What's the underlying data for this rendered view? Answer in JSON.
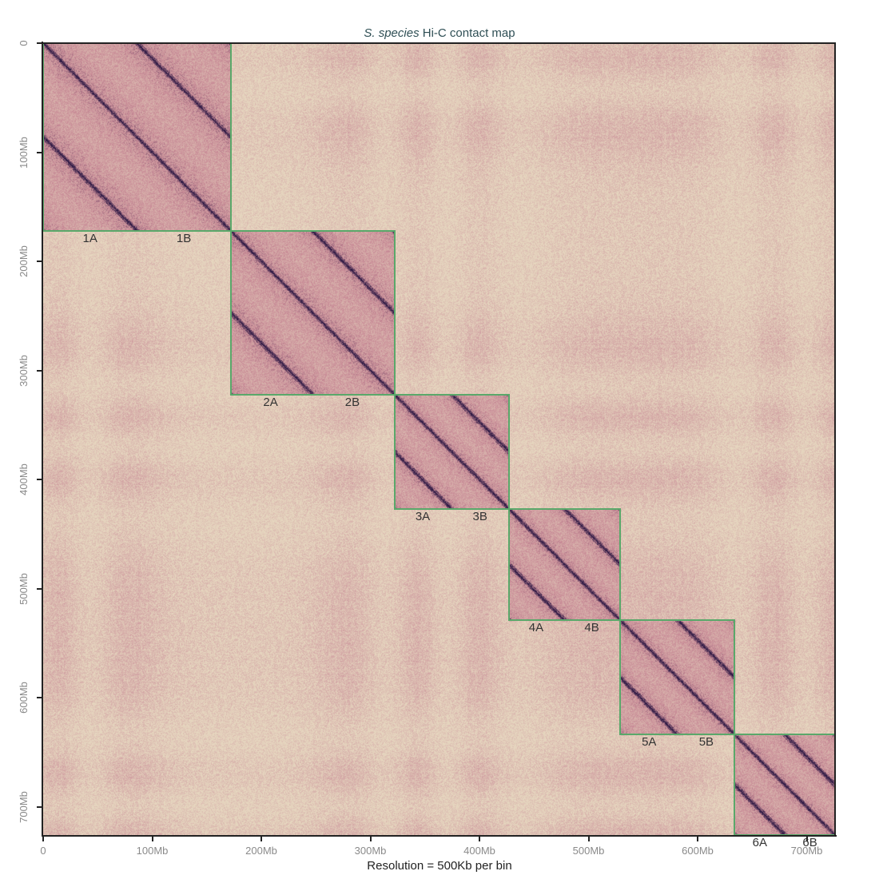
{
  "chart_data": {
    "type": "heatmap",
    "title_italic": "S. species",
    "title_rest": " Hi-C contact map",
    "xlabel": "Resolution = 500Kb per bin",
    "ylabel": "",
    "genome_size_mb": 726,
    "resolution": "500Kb per bin",
    "x_ticks": [
      "0",
      "100Mb",
      "200Mb",
      "300Mb",
      "400Mb",
      "500Mb",
      "600Mb",
      "700Mb"
    ],
    "y_ticks": [
      "0",
      "100Mb",
      "200Mb",
      "300Mb",
      "400Mb",
      "500Mb",
      "600Mb",
      "700Mb"
    ],
    "tick_values_mb": [
      0,
      100,
      200,
      300,
      400,
      500,
      600,
      700
    ],
    "axis_range_mb": [
      0,
      726
    ],
    "grid": false,
    "legend": null,
    "colormap": {
      "low": "#e6d6bf",
      "mid": "#c98a96",
      "high": "#2e1a45"
    },
    "box_color": "#5aa86a",
    "chromosomes": [
      {
        "name": "1",
        "start_mb": 0,
        "end_mb": 172,
        "sub": [
          {
            "label": "1A",
            "start_mb": 0,
            "end_mb": 86
          },
          {
            "label": "1B",
            "start_mb": 86,
            "end_mb": 172
          }
        ]
      },
      {
        "name": "2",
        "start_mb": 172,
        "end_mb": 322,
        "sub": [
          {
            "label": "2A",
            "start_mb": 172,
            "end_mb": 245
          },
          {
            "label": "2B",
            "start_mb": 245,
            "end_mb": 322
          }
        ]
      },
      {
        "name": "3",
        "start_mb": 322,
        "end_mb": 427,
        "sub": [
          {
            "label": "3A",
            "start_mb": 322,
            "end_mb": 374
          },
          {
            "label": "3B",
            "start_mb": 374,
            "end_mb": 427
          }
        ]
      },
      {
        "name": "4",
        "start_mb": 427,
        "end_mb": 529,
        "sub": [
          {
            "label": "4A",
            "start_mb": 427,
            "end_mb": 477
          },
          {
            "label": "4B",
            "start_mb": 477,
            "end_mb": 529
          }
        ]
      },
      {
        "name": "5",
        "start_mb": 529,
        "end_mb": 634,
        "sub": [
          {
            "label": "5A",
            "start_mb": 529,
            "end_mb": 582
          },
          {
            "label": "5B",
            "start_mb": 582,
            "end_mb": 634
          }
        ]
      },
      {
        "name": "6",
        "start_mb": 634,
        "end_mb": 726,
        "sub": [
          {
            "label": "6A",
            "start_mb": 634,
            "end_mb": 680
          },
          {
            "label": "6B",
            "start_mb": 680,
            "end_mb": 726
          }
        ]
      }
    ],
    "annotations": [
      "1A",
      "1B",
      "2A",
      "2B",
      "3A",
      "3B",
      "4A",
      "4B",
      "5A",
      "5B",
      "6A",
      "6B"
    ]
  }
}
